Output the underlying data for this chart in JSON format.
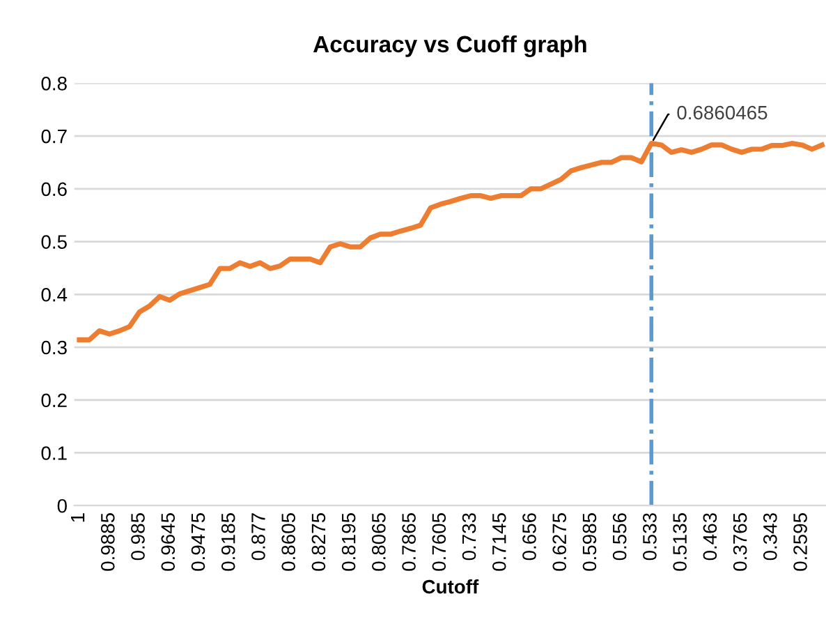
{
  "chart_data": {
    "type": "line",
    "title": "Accuracy vs Cuoff graph",
    "xlabel": "Cutoff",
    "categories": [
      "1",
      null,
      null,
      "0.9885",
      null,
      null,
      "0.985",
      null,
      null,
      "0.9645",
      null,
      null,
      "0.9475",
      null,
      null,
      "0.9185",
      null,
      null,
      "0.877",
      null,
      null,
      "0.8605",
      null,
      null,
      "0.8275",
      null,
      null,
      "0.8195",
      null,
      null,
      "0.8065",
      null,
      null,
      "0.7865",
      null,
      null,
      "0.7605",
      null,
      null,
      "0.733",
      null,
      null,
      "0.7145",
      null,
      null,
      "0.656",
      null,
      null,
      "0.6275",
      null,
      null,
      "0.5985",
      null,
      null,
      "0.556",
      null,
      null,
      "0.533",
      null,
      null,
      "0.5135",
      null,
      null,
      "0.463",
      null,
      null,
      "0.3765",
      null,
      null,
      "0.343",
      null,
      null,
      "0.2595",
      null,
      null
    ],
    "series": [
      {
        "color": "#ed7d31",
        "values": [
          0.314,
          0.314,
          0.331,
          0.325,
          0.331,
          0.339,
          0.367,
          0.378,
          0.396,
          0.389,
          0.401,
          0.407,
          0.413,
          0.419,
          0.449,
          0.449,
          0.46,
          0.453,
          0.46,
          0.449,
          0.454,
          0.467,
          0.467,
          0.467,
          0.46,
          0.49,
          0.496,
          0.49,
          0.49,
          0.507,
          0.514,
          0.514,
          0.52,
          0.525,
          0.531,
          0.564,
          0.571,
          0.576,
          0.582,
          0.587,
          0.587,
          0.582,
          0.587,
          0.587,
          0.587,
          0.6,
          0.6,
          0.609,
          0.618,
          0.634,
          0.64,
          0.645,
          0.65,
          0.65,
          0.659,
          0.659,
          0.651,
          0.6860465,
          0.683,
          0.669,
          0.674,
          0.669,
          0.675,
          0.683,
          0.683,
          0.675,
          0.669,
          0.675,
          0.675,
          0.682,
          0.682,
          0.686,
          0.683,
          0.675,
          0.683
        ]
      }
    ],
    "ylim": [
      0,
      0.8
    ],
    "yticks": [
      {
        "value": 0,
        "label": "0"
      },
      0.1,
      0.2,
      0.3,
      0.4,
      0.5,
      0.6,
      0.7,
      0.8
    ],
    "grid": "y",
    "marker": "none",
    "line_style": "solid",
    "ref_lines": [
      {
        "axis": "x",
        "value": "0.533",
        "color": "#5b9bd5",
        "line_style": "dashdot"
      }
    ],
    "annotations": [
      {
        "text": "0.6860465",
        "x": "0.533",
        "y": 0.6860465
      }
    ]
  }
}
